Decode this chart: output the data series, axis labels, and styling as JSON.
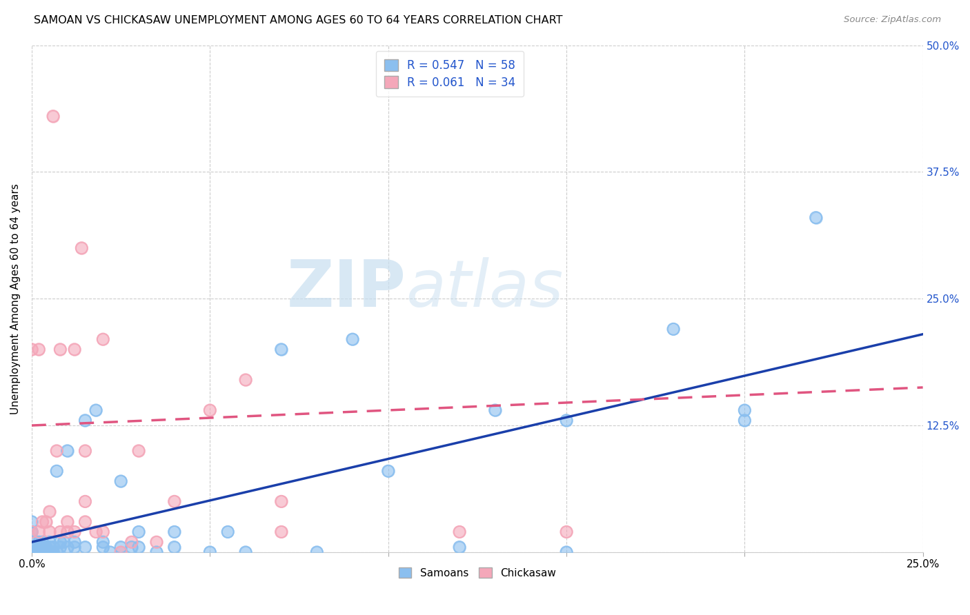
{
  "title": "SAMOAN VS CHICKASAW UNEMPLOYMENT AMONG AGES 60 TO 64 YEARS CORRELATION CHART",
  "source": "Source: ZipAtlas.com",
  "ylabel": "Unemployment Among Ages 60 to 64 years",
  "xlim": [
    0,
    0.25
  ],
  "ylim": [
    0,
    0.5
  ],
  "xticks": [
    0.0,
    0.05,
    0.1,
    0.15,
    0.2,
    0.25
  ],
  "xticklabels": [
    "0.0%",
    "",
    "",
    "",
    "",
    "25.0%"
  ],
  "yticks": [
    0.0,
    0.125,
    0.25,
    0.375,
    0.5
  ],
  "yticklabels": [
    "",
    "12.5%",
    "25.0%",
    "37.5%",
    "50.0%"
  ],
  "grid_color": "#cccccc",
  "background_color": "#ffffff",
  "samoans_color": "#8bbfef",
  "chickasaw_color": "#f4a7b9",
  "samoans_line_color": "#1a3faa",
  "chickasaw_line_color": "#e05580",
  "R_samoans": 0.547,
  "N_samoans": 58,
  "R_chickasaw": 0.061,
  "N_chickasaw": 34,
  "watermark_zip": "ZIP",
  "watermark_atlas": "atlas",
  "samoans_line_x0": 0.0,
  "samoans_line_y0": 0.01,
  "samoans_line_x1": 0.25,
  "samoans_line_y1": 0.215,
  "chickasaw_line_x0": 0.0,
  "chickasaw_line_y0": 0.125,
  "chickasaw_line_x1": 0.2,
  "chickasaw_line_y1": 0.155,
  "samoans_x": [
    0.0,
    0.0,
    0.0,
    0.0,
    0.0,
    0.001,
    0.001,
    0.002,
    0.002,
    0.002,
    0.003,
    0.003,
    0.003,
    0.004,
    0.004,
    0.005,
    0.005,
    0.005,
    0.006,
    0.006,
    0.007,
    0.007,
    0.008,
    0.008,
    0.009,
    0.01,
    0.01,
    0.012,
    0.012,
    0.015,
    0.015,
    0.018,
    0.02,
    0.02,
    0.022,
    0.025,
    0.025,
    0.028,
    0.03,
    0.03,
    0.035,
    0.04,
    0.04,
    0.05,
    0.055,
    0.06,
    0.07,
    0.08,
    0.09,
    0.1,
    0.12,
    0.13,
    0.15,
    0.15,
    0.18,
    0.2,
    0.2,
    0.22
  ],
  "samoans_y": [
    0.0,
    0.005,
    0.01,
    0.02,
    0.03,
    0.0,
    0.005,
    0.0,
    0.005,
    0.01,
    0.0,
    0.005,
    0.01,
    0.0,
    0.005,
    0.0,
    0.005,
    0.01,
    0.0,
    0.005,
    0.0,
    0.08,
    0.005,
    0.01,
    0.01,
    0.005,
    0.1,
    0.005,
    0.01,
    0.005,
    0.13,
    0.14,
    0.005,
    0.01,
    0.0,
    0.005,
    0.07,
    0.005,
    0.005,
    0.02,
    0.0,
    0.005,
    0.02,
    0.0,
    0.02,
    0.0,
    0.2,
    0.0,
    0.21,
    0.08,
    0.005,
    0.14,
    0.0,
    0.13,
    0.22,
    0.13,
    0.14,
    0.33
  ],
  "chickasaw_x": [
    0.0,
    0.0,
    0.002,
    0.002,
    0.003,
    0.004,
    0.005,
    0.005,
    0.006,
    0.007,
    0.008,
    0.008,
    0.01,
    0.01,
    0.012,
    0.012,
    0.014,
    0.015,
    0.015,
    0.015,
    0.018,
    0.02,
    0.02,
    0.025,
    0.028,
    0.03,
    0.035,
    0.04,
    0.05,
    0.06,
    0.07,
    0.07,
    0.12,
    0.15
  ],
  "chickasaw_y": [
    0.02,
    0.2,
    0.02,
    0.2,
    0.03,
    0.03,
    0.02,
    0.04,
    0.43,
    0.1,
    0.02,
    0.2,
    0.02,
    0.03,
    0.02,
    0.2,
    0.3,
    0.03,
    0.05,
    0.1,
    0.02,
    0.02,
    0.21,
    0.0,
    0.01,
    0.1,
    0.01,
    0.05,
    0.14,
    0.17,
    0.02,
    0.05,
    0.02,
    0.02
  ]
}
